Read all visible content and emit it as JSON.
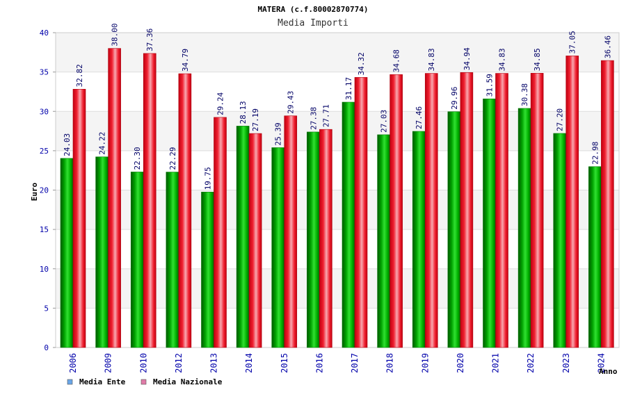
{
  "chart_data": {
    "type": "bar",
    "title": "MATERA (c.f.80002870774)",
    "subtitle": "Media Importi",
    "ylabel": "Euro",
    "xlabel": "Anno",
    "ylim": [
      0,
      40
    ],
    "yticks": [
      0,
      5,
      10,
      15,
      20,
      25,
      30,
      35,
      40
    ],
    "grid": true,
    "legend_position": "bottom-left",
    "categories": [
      "2006",
      "2009",
      "2010",
      "2012",
      "2013",
      "2014",
      "2015",
      "2016",
      "2017",
      "2018",
      "2019",
      "2020",
      "2021",
      "2022",
      "2023",
      "2024"
    ],
    "series": [
      {
        "name": "Media Ente",
        "color": "#00b400",
        "legend_color": "#6aa6e8",
        "values": [
          24.03,
          24.22,
          22.3,
          22.29,
          19.75,
          28.13,
          25.39,
          27.38,
          31.17,
          27.03,
          27.46,
          29.96,
          31.59,
          30.38,
          27.2,
          22.98
        ],
        "labels": [
          "24.03",
          "24.22",
          "22.30",
          "22.29",
          "19.75",
          "28.13",
          "25.39",
          "27.38",
          "31.17",
          "27.03",
          "27.46",
          "29.96",
          "31.59",
          "30.38",
          "27.20",
          "22.98"
        ]
      },
      {
        "name": "Media Nazionale",
        "color": "#e8101e",
        "legend_color": "#e07ca8",
        "values": [
          32.82,
          38.0,
          37.36,
          34.79,
          29.24,
          27.19,
          29.43,
          27.71,
          34.32,
          34.68,
          34.83,
          34.94,
          34.83,
          34.85,
          37.05,
          36.46
        ],
        "labels": [
          "32.82",
          "38.00",
          "37.36",
          "34.79",
          "29.24",
          "27.19",
          "29.43",
          "27.71",
          "34.32",
          "34.68",
          "34.83",
          "34.94",
          "34.83",
          "34.85",
          "37.05",
          "36.46"
        ]
      }
    ]
  }
}
